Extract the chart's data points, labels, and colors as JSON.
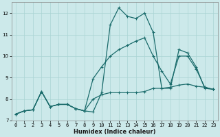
{
  "xlabel": "Humidex (Indice chaleur)",
  "bg_color": "#cce9ea",
  "line_color": "#1a6b6b",
  "line1_x": [
    0,
    1,
    2,
    3,
    4,
    5,
    6,
    7,
    8,
    9,
    10,
    11,
    12,
    13,
    14,
    15,
    16,
    17,
    18,
    19,
    20,
    21,
    22,
    23
  ],
  "line1_y": [
    7.3,
    7.45,
    7.5,
    8.35,
    7.65,
    7.75,
    7.75,
    7.55,
    7.45,
    7.4,
    8.3,
    11.45,
    12.25,
    11.85,
    11.75,
    12.0,
    11.1,
    8.5,
    8.5,
    10.3,
    10.15,
    9.5,
    8.5,
    8.45
  ],
  "line2_x": [
    0,
    1,
    2,
    3,
    4,
    5,
    6,
    7,
    8,
    9,
    10,
    11,
    12,
    13,
    14,
    15,
    16,
    17,
    18,
    19,
    20,
    21,
    22,
    23
  ],
  "line2_y": [
    7.3,
    7.45,
    7.5,
    8.35,
    7.65,
    7.75,
    7.75,
    7.55,
    7.45,
    8.95,
    9.5,
    10.0,
    10.3,
    10.5,
    10.7,
    10.85,
    10.0,
    9.3,
    8.7,
    10.0,
    10.0,
    9.4,
    8.55,
    8.45
  ],
  "line3_x": [
    0,
    1,
    2,
    3,
    4,
    5,
    6,
    7,
    8,
    9,
    10,
    11,
    12,
    13,
    14,
    15,
    16,
    17,
    18,
    19,
    20,
    21,
    22,
    23
  ],
  "line3_y": [
    7.3,
    7.45,
    7.5,
    8.35,
    7.65,
    7.75,
    7.75,
    7.55,
    7.45,
    8.0,
    8.2,
    8.3,
    8.3,
    8.3,
    8.3,
    8.35,
    8.5,
    8.5,
    8.55,
    8.65,
    8.7,
    8.6,
    8.55,
    8.45
  ],
  "ylim": [
    7,
    12.5
  ],
  "xlim": [
    -0.5,
    23.5
  ],
  "yticks": [
    7,
    8,
    9,
    10,
    11,
    12
  ],
  "xticks": [
    0,
    1,
    2,
    3,
    4,
    5,
    6,
    7,
    8,
    9,
    10,
    11,
    12,
    13,
    14,
    15,
    16,
    17,
    18,
    19,
    20,
    21,
    22,
    23
  ],
  "tick_fontsize": 5.0,
  "xlabel_fontsize": 6.0,
  "ylabel_fontsize": 6.0,
  "grid_color": "#aad4d4",
  "spine_color": "#888888"
}
